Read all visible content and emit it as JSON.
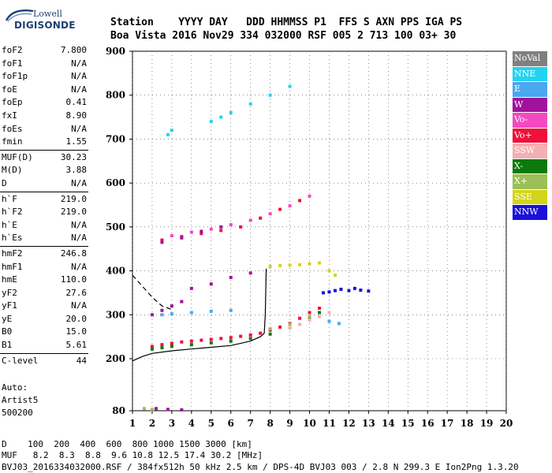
{
  "logo": {
    "top": "Lowell",
    "bottom": "DIGISONDE"
  },
  "header": {
    "line1": "Station    YYYY DAY   DDD HHMMSS P1  FFS S AXN PPS IGA PS",
    "line2": "Boa Vista 2016 Nov29 334 032000 RSF 005 2 713 100 03+ 30"
  },
  "params_group1": [
    {
      "label": "foF2",
      "value": "7.800"
    },
    {
      "label": "foF1",
      "value": "N/A"
    },
    {
      "label": "foF1p",
      "value": "N/A"
    },
    {
      "label": "foE",
      "value": "N/A"
    },
    {
      "label": "foEp",
      "value": "0.41"
    },
    {
      "label": "fxI",
      "value": "8.90"
    },
    {
      "label": "foEs",
      "value": "N/A"
    },
    {
      "label": "fmin",
      "value": "1.55"
    }
  ],
  "params_group2": [
    {
      "label": "MUF(D)",
      "value": "30.23"
    },
    {
      "label": "M(D)",
      "value": "3.88"
    },
    {
      "label": "D",
      "value": "N/A"
    }
  ],
  "params_group3": [
    {
      "label": "h`F",
      "value": "219.0"
    },
    {
      "label": "h`F2",
      "value": "219.0"
    },
    {
      "label": "h`E",
      "value": "N/A"
    },
    {
      "label": "h`Es",
      "value": "N/A"
    }
  ],
  "params_group4": [
    {
      "label": "hmF2",
      "value": "246.8"
    },
    {
      "label": "hmF1",
      "value": "N/A"
    },
    {
      "label": "hmE",
      "value": "110.0"
    },
    {
      "label": "yF2",
      "value": "27.6"
    },
    {
      "label": "yF1",
      "value": "N/A"
    },
    {
      "label": "yE",
      "value": "20.0"
    },
    {
      "label": "B0",
      "value": "15.0"
    },
    {
      "label": "B1",
      "value": "5.61"
    }
  ],
  "params_group5": [
    {
      "label": "C-level",
      "value": "44"
    }
  ],
  "autoscale": {
    "line1": "Auto:",
    "line2": "Artist5",
    "line3": "500200"
  },
  "legend": [
    {
      "label": "NoVal",
      "color": "#808080",
      "text": "#ffffff"
    },
    {
      "label": "NNE",
      "color": "#22d3f0",
      "text": "#ffffff"
    },
    {
      "label": "E",
      "color": "#4aa8f0",
      "text": "#ffffff"
    },
    {
      "label": "W",
      "color": "#a0129c",
      "text": "#ffffff"
    },
    {
      "label": "Vo-",
      "color": "#f34ac2",
      "text": "#ffffff"
    },
    {
      "label": "Vo+",
      "color": "#f0103a",
      "text": "#ffffff"
    },
    {
      "label": "SSW",
      "color": "#f4b0b0",
      "text": "#ffffff"
    },
    {
      "label": "X-",
      "color": "#0a7a0a",
      "text": "#ffffff"
    },
    {
      "label": "X+",
      "color": "#9bbf56",
      "text": "#ffffff"
    },
    {
      "label": "SSE",
      "color": "#d4d41a",
      "text": "#ffffff"
    },
    {
      "label": "NNW",
      "color": "#1a10d8",
      "text": "#ffffff"
    }
  ],
  "footer": {
    "line1": "D    100  200  400  600  800 1000 1500 3000 [km]",
    "line2": "MUF   8.2  8.3  8.8  9.6 10.8 12.5 17.4 30.2 [MHz]",
    "line3": "BVJ03_2016334032000.RSF / 384fx512h 50 kHz 2.5 km / DPS-4D BVJ03 003 / 2.8 N 299.3 E Ion2Png 1.3.20"
  },
  "chart_data": {
    "type": "scatter",
    "title": "",
    "xlabel": "",
    "ylabel": "",
    "xlim": [
      1,
      20
    ],
    "ylim": [
      80,
      900
    ],
    "x_ticks": [
      "1",
      "2",
      "3",
      "4",
      "5",
      "6",
      "7",
      "8",
      "9",
      "10",
      "11",
      "12",
      "13",
      "14",
      "15",
      "16",
      "17",
      "18",
      "19",
      "20"
    ],
    "y_ticks": [
      "80",
      "200",
      "300",
      "400",
      "500",
      "600",
      "700",
      "800",
      "900"
    ],
    "series": [
      {
        "name": "Vo+",
        "color": "#f0103a",
        "points": [
          [
            2.0,
            228
          ],
          [
            2.5,
            232
          ],
          [
            3.0,
            235
          ],
          [
            3.5,
            238
          ],
          [
            4.0,
            240
          ],
          [
            4.5,
            242
          ],
          [
            5.0,
            244
          ],
          [
            5.5,
            246
          ],
          [
            6.0,
            248
          ],
          [
            6.5,
            251
          ],
          [
            7.0,
            254
          ],
          [
            7.5,
            258
          ],
          [
            8.0,
            265
          ],
          [
            8.5,
            272
          ],
          [
            9.0,
            280
          ],
          [
            9.5,
            292
          ],
          [
            10.0,
            305
          ],
          [
            10.5,
            315
          ],
          [
            2.5,
            470
          ],
          [
            3.5,
            478
          ],
          [
            4.5,
            485
          ],
          [
            5.5,
            492
          ],
          [
            6.5,
            500
          ],
          [
            7.5,
            520
          ],
          [
            8.5,
            540
          ],
          [
            9.5,
            560
          ]
        ]
      },
      {
        "name": "X-",
        "color": "#0a7a0a",
        "points": [
          [
            2.0,
            222
          ],
          [
            2.5,
            225
          ],
          [
            3.0,
            228
          ],
          [
            4.0,
            232
          ],
          [
            5.0,
            236
          ],
          [
            6.0,
            240
          ],
          [
            7.0,
            246
          ],
          [
            8.0,
            256
          ],
          [
            9.0,
            270
          ],
          [
            10.0,
            292
          ],
          [
            10.5,
            305
          ]
        ]
      },
      {
        "name": "W",
        "color": "#a0129c",
        "points": [
          [
            2.0,
            300
          ],
          [
            2.5,
            310
          ],
          [
            3.0,
            320
          ],
          [
            3.5,
            330
          ],
          [
            4.0,
            360
          ],
          [
            5.0,
            370
          ],
          [
            6.0,
            385
          ],
          [
            7.0,
            395
          ],
          [
            2.5,
            465
          ],
          [
            3.5,
            475
          ],
          [
            4.5,
            490
          ],
          [
            5.5,
            500
          ],
          [
            2.2,
            85
          ],
          [
            2.8,
            83
          ],
          [
            3.5,
            82
          ]
        ]
      },
      {
        "name": "Vo-",
        "color": "#f34ac2",
        "points": [
          [
            3.0,
            480
          ],
          [
            4.0,
            488
          ],
          [
            5.0,
            495
          ],
          [
            6.0,
            505
          ],
          [
            7.0,
            515
          ],
          [
            8.0,
            530
          ],
          [
            9.0,
            548
          ],
          [
            10.0,
            570
          ]
        ]
      },
      {
        "name": "SSE",
        "color": "#d4d41a",
        "points": [
          [
            8.0,
            410
          ],
          [
            8.5,
            412
          ],
          [
            9.0,
            413
          ],
          [
            9.5,
            414
          ],
          [
            10.0,
            416
          ],
          [
            10.5,
            418
          ],
          [
            11.0,
            400
          ],
          [
            11.3,
            390
          ]
        ]
      },
      {
        "name": "NNW",
        "color": "#1a10d8",
        "points": [
          [
            10.7,
            350
          ],
          [
            11.0,
            352
          ],
          [
            11.3,
            355
          ],
          [
            11.6,
            358
          ],
          [
            12.0,
            355
          ],
          [
            12.3,
            360
          ],
          [
            12.6,
            356
          ],
          [
            13.0,
            354
          ]
        ]
      },
      {
        "name": "NNE",
        "color": "#22d3f0",
        "points": [
          [
            5.0,
            740
          ],
          [
            5.5,
            750
          ],
          [
            6.0,
            760
          ],
          [
            7.0,
            780
          ],
          [
            8.0,
            800
          ],
          [
            9.0,
            820
          ],
          [
            2.8,
            710
          ],
          [
            3.0,
            720
          ]
        ]
      },
      {
        "name": "E",
        "color": "#4aa8f0",
        "points": [
          [
            2.5,
            300
          ],
          [
            3.0,
            302
          ],
          [
            4.0,
            305
          ],
          [
            5.0,
            308
          ],
          [
            6.0,
            310
          ],
          [
            11.0,
            285
          ],
          [
            11.5,
            280
          ]
        ]
      },
      {
        "name": "SSW",
        "color": "#f4b0b0",
        "points": [
          [
            9.0,
            270
          ],
          [
            9.5,
            278
          ],
          [
            10.0,
            288
          ],
          [
            10.5,
            296
          ],
          [
            11.0,
            305
          ]
        ]
      },
      {
        "name": "X+",
        "color": "#9bbf56",
        "points": [
          [
            8.0,
            268
          ],
          [
            9.0,
            278
          ],
          [
            10.0,
            296
          ],
          [
            2.0,
            83
          ],
          [
            1.6,
            85
          ]
        ]
      }
    ],
    "lines": [
      {
        "name": "profile",
        "style": "solid",
        "color": "#000000",
        "points": [
          [
            1.0,
            195
          ],
          [
            1.5,
            205
          ],
          [
            2.0,
            212
          ],
          [
            3.0,
            218
          ],
          [
            4.0,
            222
          ],
          [
            5.0,
            226
          ],
          [
            6.0,
            230
          ],
          [
            7.0,
            240
          ],
          [
            7.5,
            250
          ],
          [
            7.7,
            258
          ],
          [
            7.75,
            300
          ],
          [
            7.8,
            405
          ]
        ]
      },
      {
        "name": "model",
        "style": "dashed",
        "color": "#000000",
        "points": [
          [
            1.0,
            390
          ],
          [
            1.5,
            365
          ],
          [
            2.0,
            340
          ],
          [
            2.5,
            320
          ],
          [
            3.0,
            312
          ]
        ]
      }
    ]
  }
}
